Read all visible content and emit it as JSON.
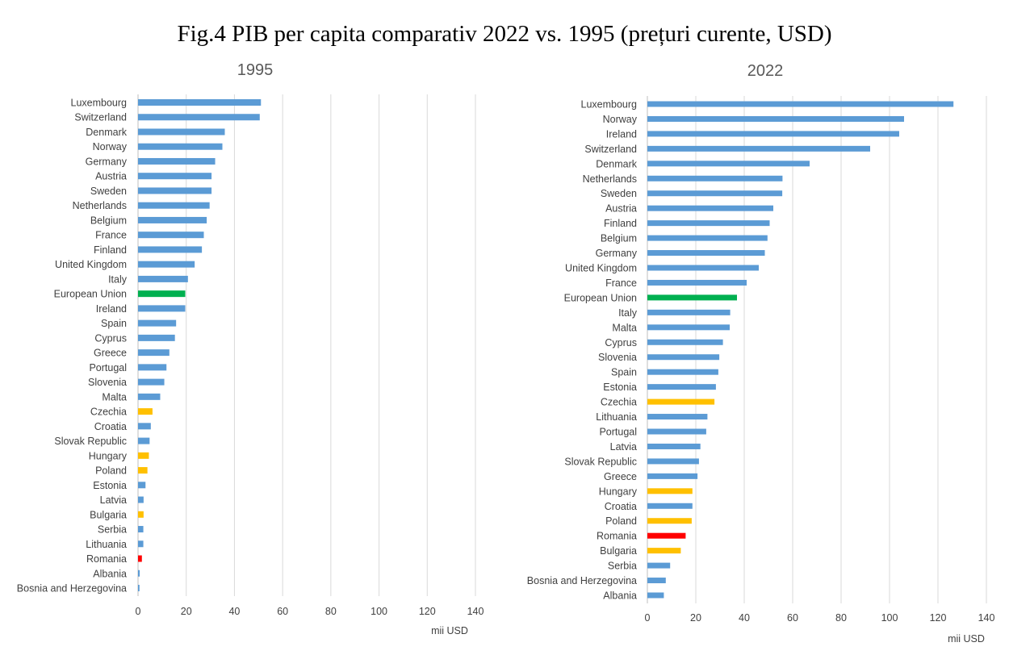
{
  "title": "Fig.4 PIB per capita comparativ 2022 vs. 1995 (prețuri curente, USD)",
  "colors": {
    "default": "#5b9bd5",
    "eu": "#00b050",
    "highlight": "#ffc000",
    "romania": "#ff0000",
    "grid": "#d9d9d9"
  },
  "chart_data": [
    {
      "type": "bar",
      "orientation": "horizontal",
      "title": "1995",
      "xlabel": "mii USD",
      "xlim": [
        0,
        140
      ],
      "xticks": [
        0,
        20,
        40,
        60,
        80,
        100,
        120,
        140
      ],
      "grid": true,
      "legend": "none",
      "categories": [
        "Luxembourg",
        "Switzerland",
        "Denmark",
        "Norway",
        "Germany",
        "Austria",
        "Sweden",
        "Netherlands",
        "Belgium",
        "France",
        "Finland",
        "United Kingdom",
        "Italy",
        "European Union",
        "Ireland",
        "Spain",
        "Cyprus",
        "Greece",
        "Portugal",
        "Slovenia",
        "Malta",
        "Czechia",
        "Croatia",
        "Slovak Republic",
        "Hungary",
        "Poland",
        "Estonia",
        "Latvia",
        "Bulgaria",
        "Serbia",
        "Lithuania",
        "Romania",
        "Albania",
        "Bosnia and Herzegovina"
      ],
      "values": [
        51,
        50.5,
        36,
        35,
        32,
        30.5,
        30.5,
        29.7,
        28.5,
        27.3,
        26.5,
        23.5,
        20.7,
        19.6,
        19.6,
        15.8,
        15.3,
        13,
        11.8,
        10.9,
        9.2,
        6,
        5.3,
        4.8,
        4.5,
        3.9,
        3.1,
        2.3,
        2.3,
        2.2,
        2.2,
        1.6,
        0.7,
        0.6
      ],
      "colors": [
        "#5b9bd5",
        "#5b9bd5",
        "#5b9bd5",
        "#5b9bd5",
        "#5b9bd5",
        "#5b9bd5",
        "#5b9bd5",
        "#5b9bd5",
        "#5b9bd5",
        "#5b9bd5",
        "#5b9bd5",
        "#5b9bd5",
        "#5b9bd5",
        "#00b050",
        "#5b9bd5",
        "#5b9bd5",
        "#5b9bd5",
        "#5b9bd5",
        "#5b9bd5",
        "#5b9bd5",
        "#5b9bd5",
        "#ffc000",
        "#5b9bd5",
        "#5b9bd5",
        "#ffc000",
        "#ffc000",
        "#5b9bd5",
        "#5b9bd5",
        "#ffc000",
        "#5b9bd5",
        "#5b9bd5",
        "#ff0000",
        "#5b9bd5",
        "#5b9bd5"
      ]
    },
    {
      "type": "bar",
      "orientation": "horizontal",
      "title": "2022",
      "xlabel": "mii USD",
      "xlim": [
        0,
        140
      ],
      "xticks": [
        0,
        20,
        40,
        60,
        80,
        100,
        120,
        140
      ],
      "grid": true,
      "legend": "none",
      "categories": [
        "Luxembourg",
        "Norway",
        "Ireland",
        "Switzerland",
        "Denmark",
        "Netherlands",
        "Sweden",
        "Austria",
        "Finland",
        "Belgium",
        "Germany",
        "United Kingdom",
        "France",
        "European Union",
        "Italy",
        "Malta",
        "Cyprus",
        "Slovenia",
        "Spain",
        "Estonia",
        "Czechia",
        "Lithuania",
        "Portugal",
        "Latvia",
        "Slovak Republic",
        "Greece",
        "Hungary",
        "Croatia",
        "Poland",
        "Romania",
        "Bulgaria",
        "Serbia",
        "Bosnia and Herzegovina",
        "Albania"
      ],
      "values": [
        126.4,
        106,
        104,
        92,
        67,
        55.8,
        55.7,
        52,
        50.5,
        49.6,
        48.5,
        46,
        41,
        37,
        34.2,
        34,
        31.2,
        29.7,
        29.3,
        28.3,
        27.7,
        24.8,
        24.3,
        21.9,
        21.3,
        20.7,
        18.6,
        18.6,
        18.3,
        15.8,
        13.8,
        9.4,
        7.6,
        6.8
      ],
      "colors": [
        "#5b9bd5",
        "#5b9bd5",
        "#5b9bd5",
        "#5b9bd5",
        "#5b9bd5",
        "#5b9bd5",
        "#5b9bd5",
        "#5b9bd5",
        "#5b9bd5",
        "#5b9bd5",
        "#5b9bd5",
        "#5b9bd5",
        "#5b9bd5",
        "#00b050",
        "#5b9bd5",
        "#5b9bd5",
        "#5b9bd5",
        "#5b9bd5",
        "#5b9bd5",
        "#5b9bd5",
        "#ffc000",
        "#5b9bd5",
        "#5b9bd5",
        "#5b9bd5",
        "#5b9bd5",
        "#5b9bd5",
        "#ffc000",
        "#5b9bd5",
        "#ffc000",
        "#ff0000",
        "#ffc000",
        "#5b9bd5",
        "#5b9bd5",
        "#5b9bd5"
      ]
    }
  ]
}
